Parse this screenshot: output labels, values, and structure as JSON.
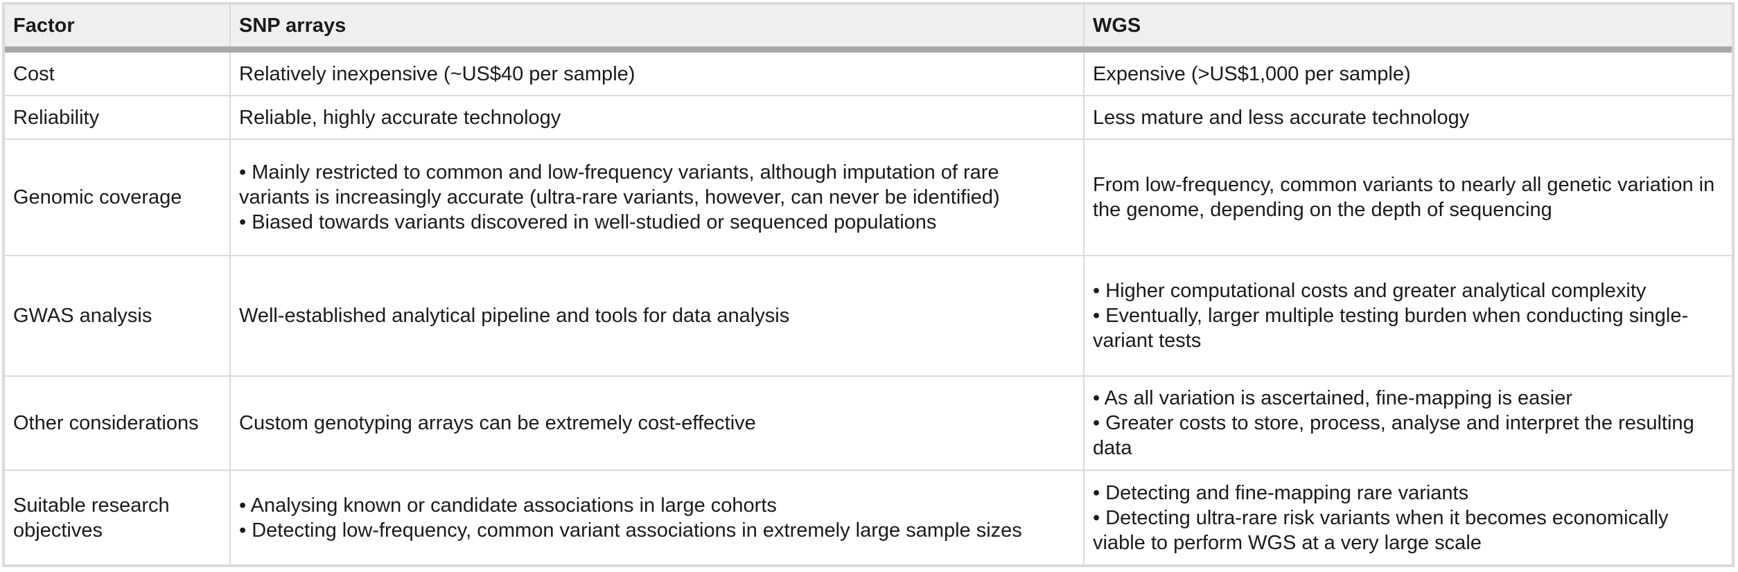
{
  "header": {
    "factor": "Factor",
    "snp": "SNP arrays",
    "wgs": "WGS"
  },
  "rows": [
    {
      "factor": "Cost",
      "snp": [
        "Relatively inexpensive (~US$40 per sample)"
      ],
      "wgs": [
        "Expensive (>US$1,000 per sample)"
      ]
    },
    {
      "factor": "Reliability",
      "snp": [
        "Reliable, highly accurate technology"
      ],
      "wgs": [
        "Less mature and less accurate technology"
      ]
    },
    {
      "factor": "Genomic coverage",
      "snp": [
        "• Mainly restricted to common and low-frequency variants, although imputation of rare variants is increasingly accurate (ultra-rare variants, however, can never be identified)",
        "• Biased towards variants discovered in well-studied or sequenced populations"
      ],
      "wgs": [
        "From low-frequency, common variants to nearly all genetic variation in the genome, depending on the depth of sequencing"
      ]
    },
    {
      "factor": "GWAS analysis",
      "snp": [
        "Well-established analytical pipeline and tools for data analysis"
      ],
      "wgs": [
        "• Higher computational costs and greater analytical complexity",
        "• Eventually, larger multiple testing burden when conducting single-variant tests"
      ]
    },
    {
      "factor": "Other considerations",
      "snp": [
        "Custom genotyping arrays can be extremely cost-effective"
      ],
      "wgs": [
        "• As all variation is ascertained, fine-mapping is easier",
        "• Greater costs to store, process, analyse and interpret the resulting data"
      ]
    },
    {
      "factor": "Suitable research objectives",
      "snp": [
        "• Analysing known or candidate associations in large cohorts",
        "• Detecting low-frequency, common variant associations in extremely large sample sizes"
      ],
      "wgs": [
        "• Detecting and fine-mapping rare variants",
        "• Detecting ultra-rare risk variants when it becomes economically viable to perform WGS at a very large scale"
      ]
    }
  ]
}
